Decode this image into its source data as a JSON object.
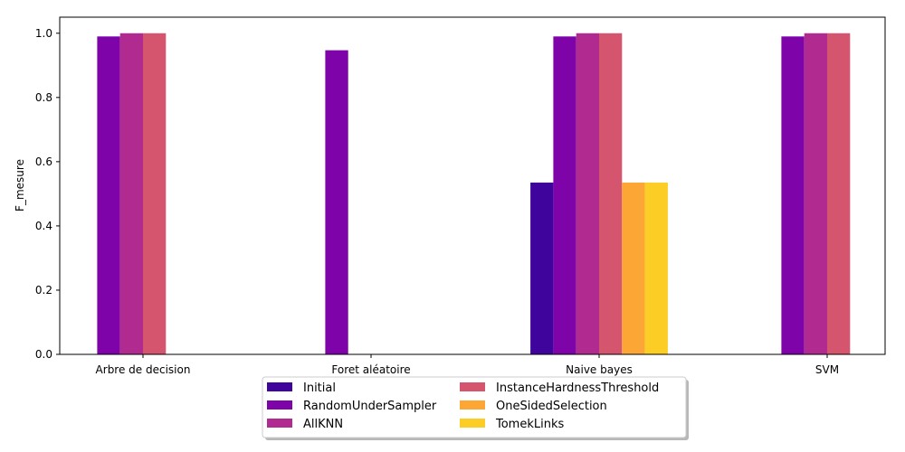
{
  "chart_data": {
    "type": "bar",
    "title": "",
    "xlabel": "",
    "ylabel": "F_mesure",
    "ylim": [
      0,
      1.05
    ],
    "yticks": [
      0.0,
      0.2,
      0.4,
      0.6,
      0.8,
      1.0
    ],
    "ytick_labels": [
      "0.0",
      "0.2",
      "0.4",
      "0.6",
      "0.8",
      "1.0"
    ],
    "grid": false,
    "legend_position": "bottom-center",
    "categories": [
      "Arbre de decision",
      "Foret aléatoire",
      "Naive bayes",
      "SVM"
    ],
    "series": [
      {
        "name": "Initial",
        "color": "#3f049c",
        "values": [
          0,
          0,
          0.535,
          0
        ]
      },
      {
        "name": "RandomUnderSampler",
        "color": "#7e03a8",
        "values": [
          0.99,
          0.947,
          0.99,
          0.99
        ]
      },
      {
        "name": "AllKNN",
        "color": "#b02a90",
        "values": [
          1.0,
          0,
          1.0,
          1.0
        ]
      },
      {
        "name": "InstanceHardnessThreshold",
        "color": "#d5546e",
        "values": [
          1.0,
          0,
          1.0,
          1.0
        ]
      },
      {
        "name": "OneSidedSelection",
        "color": "#fca636",
        "values": [
          0,
          0,
          0.535,
          0
        ]
      },
      {
        "name": "TomekLinks",
        "color": "#fccd25",
        "values": [
          0,
          0,
          0.535,
          0
        ]
      }
    ]
  }
}
